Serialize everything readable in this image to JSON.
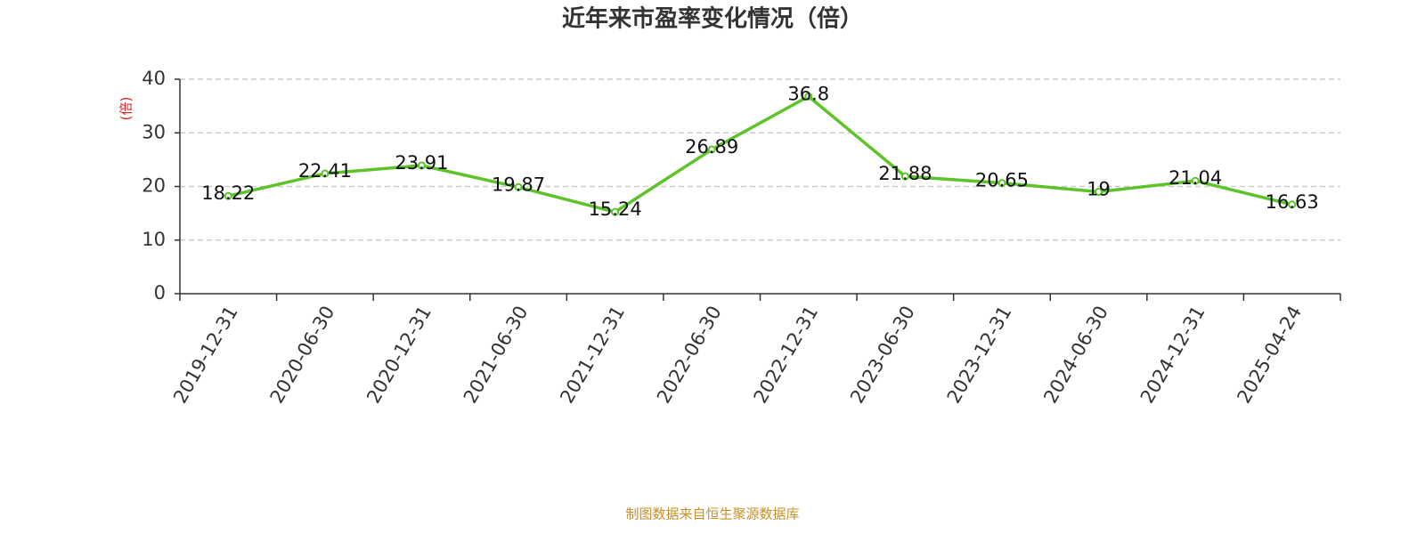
{
  "chart_data": {
    "type": "line",
    "title": "近年来市盈率变化情况（倍）",
    "y_label": "(倍)",
    "categories": [
      "2019-12-31",
      "2020-06-30",
      "2020-12-31",
      "2021-06-30",
      "2021-12-31",
      "2022-06-30",
      "2022-12-31",
      "2023-06-30",
      "2023-12-31",
      "2024-06-30",
      "2024-12-31",
      "2025-04-24"
    ],
    "values": [
      18.22,
      22.41,
      23.91,
      19.87,
      15.24,
      26.89,
      36.8,
      21.88,
      20.65,
      19,
      21.04,
      16.63
    ],
    "color": "#5cc428",
    "ylim": [
      0,
      40
    ],
    "yticks": [
      0,
      10,
      20,
      30,
      40
    ],
    "grid": true,
    "source": "制图数据来自恒生聚源数据库"
  }
}
